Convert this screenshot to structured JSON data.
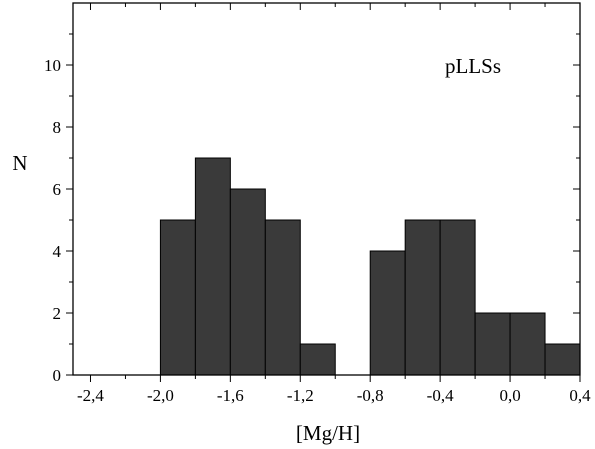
{
  "chart_data": {
    "type": "bar",
    "annotation": "pLLSs",
    "xlabel": "[Mg/H]",
    "ylabel": "N",
    "xlim": [
      -2.5,
      0.4
    ],
    "ylim": [
      0,
      12
    ],
    "grid": false,
    "bin_width": 0.2,
    "bins": [
      {
        "x0": -2.0,
        "x1": -1.8,
        "value": 5
      },
      {
        "x0": -1.8,
        "x1": -1.6,
        "value": 7
      },
      {
        "x0": -1.6,
        "x1": -1.4,
        "value": 6
      },
      {
        "x0": -1.4,
        "x1": -1.2,
        "value": 5
      },
      {
        "x0": -1.2,
        "x1": -1.0,
        "value": 1
      },
      {
        "x0": -0.8,
        "x1": -0.6,
        "value": 4
      },
      {
        "x0": -0.6,
        "x1": -0.4,
        "value": 5
      },
      {
        "x0": -0.4,
        "x1": -0.2,
        "value": 5
      },
      {
        "x0": -0.2,
        "x1": 0.0,
        "value": 2
      },
      {
        "x0": 0.0,
        "x1": 0.2,
        "value": 2
      },
      {
        "x0": 0.2,
        "x1": 0.4,
        "value": 1
      }
    ],
    "x_ticks": [
      {
        "value": -2.4,
        "label": "-2,4"
      },
      {
        "value": -2.0,
        "label": "-2,0"
      },
      {
        "value": -1.6,
        "label": "-1,6"
      },
      {
        "value": -1.2,
        "label": "-1,2"
      },
      {
        "value": -0.8,
        "label": "-0,8"
      },
      {
        "value": -0.4,
        "label": "-0,4"
      },
      {
        "value": 0.0,
        "label": "0,0"
      },
      {
        "value": 0.4,
        "label": "0,4"
      }
    ],
    "y_ticks": [
      {
        "value": 0,
        "label": "0"
      },
      {
        "value": 2,
        "label": "2"
      },
      {
        "value": 4,
        "label": "4"
      },
      {
        "value": 6,
        "label": "6"
      },
      {
        "value": 8,
        "label": "8"
      },
      {
        "value": 10,
        "label": "10"
      }
    ],
    "bar_color": "#3a3a3a",
    "edge_color": "#000000"
  }
}
